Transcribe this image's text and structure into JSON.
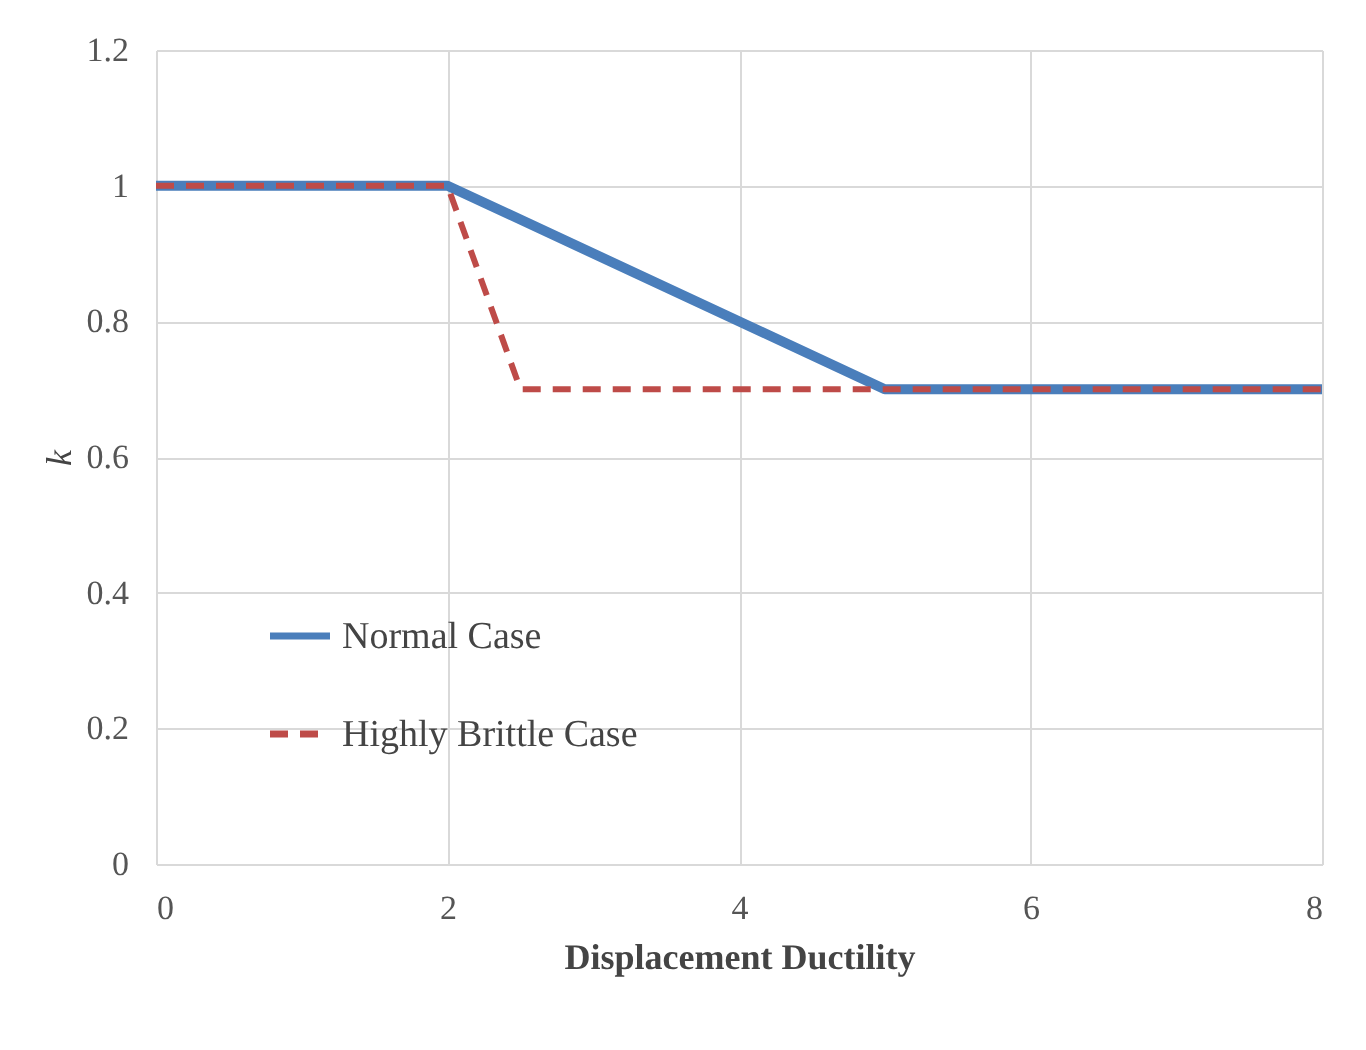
{
  "chart_data": {
    "type": "line",
    "xlabel": "Displacement Ductility",
    "ylabel": "k",
    "xlim": [
      0,
      8
    ],
    "xticks": [
      0,
      2,
      4,
      6,
      8
    ],
    "ylim": [
      0,
      1.2
    ],
    "yticks": [
      0,
      0.2,
      0.4,
      0.6,
      0.8,
      1,
      1.2
    ],
    "grid": true,
    "legend": "bottom left",
    "series": [
      {
        "name": "Normal Case",
        "color": "#4a7ebb",
        "line_style": "solid",
        "x": [
          0,
          2,
          5,
          8
        ],
        "values": [
          1,
          1,
          0.7,
          0.7
        ]
      },
      {
        "name": "Highly Brittle Case",
        "color": "#be4b48",
        "line_style": "dashed",
        "x": [
          0,
          2,
          2.5,
          8
        ],
        "values": [
          1,
          1,
          0.7,
          0.7
        ]
      }
    ]
  }
}
